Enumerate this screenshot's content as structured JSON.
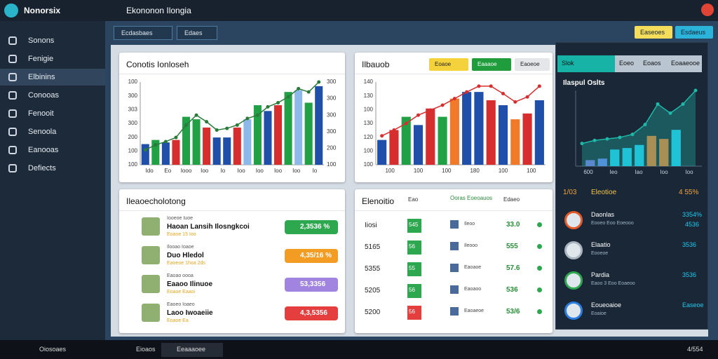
{
  "app": {
    "name": "Nonorsix",
    "tab": "Ekononon Ilongia"
  },
  "toolbar": {
    "left": [
      "Ecdasbaes",
      "Edaes"
    ],
    "right": [
      "Easeoes",
      "Esdaeus"
    ]
  },
  "sidebar": [
    "Sonons",
    "Fenigie",
    "Elbinins",
    "Conooas",
    "Fenooit",
    "Senoola",
    "Eanooas",
    "Defiects"
  ],
  "charts": [
    {
      "type": "bar",
      "title": "Conotis Ionloseh",
      "ylim": [
        0,
        100
      ],
      "y_labels": [
        "100",
        "300",
        "303",
        "300",
        "200",
        "100",
        "100"
      ],
      "y2_labels": [
        "300",
        "300",
        "300",
        "300",
        "200",
        "100"
      ],
      "x_labels": [
        "Ido",
        "Eo",
        "Iooo",
        "Ioo",
        "Io",
        "Ioo",
        "Ioo",
        "Ioo",
        "Ioo",
        "Io"
      ],
      "values": [
        25,
        30,
        27,
        30,
        58,
        55,
        45,
        33,
        33,
        45,
        55,
        72,
        65,
        72,
        88,
        90,
        75,
        95
      ],
      "colors": [
        "#1f4fa8",
        "#22a046",
        "#1f4fa8",
        "#d62e2e",
        "#22a046",
        "#22a046",
        "#d62e2e",
        "#1f4fa8",
        "#1f4fa8",
        "#d62e2e",
        "#8fb8ea",
        "#22a046",
        "#1f4fa8",
        "#d62e2e",
        "#22a046",
        "#8fb8ea",
        "#22a046",
        "#1f4fa8"
      ],
      "line_color": "#2a7a3a",
      "line_values": [
        18,
        24,
        28,
        33,
        48,
        60,
        52,
        42,
        44,
        48,
        56,
        60,
        70,
        75,
        82,
        92,
        88,
        100
      ]
    },
    {
      "type": "bar",
      "title": "Ilbauob",
      "buttons": [
        "Eoaoe",
        "Eaaaoe",
        "Eaoeoe"
      ],
      "button_colors": [
        "#f4d23c",
        "#1f9c3c",
        "#e4e6ea"
      ],
      "ylim": [
        0,
        100
      ],
      "y_labels": [
        "140",
        "130",
        "100",
        "130",
        "120",
        "100",
        "100"
      ],
      "x_labels": [
        "100",
        "100",
        "100",
        "180",
        "100",
        "100"
      ],
      "values": [
        30,
        42,
        58,
        48,
        68,
        58,
        80,
        88,
        88,
        78,
        72,
        55,
        62,
        78
      ],
      "colors": [
        "#1f4fa8",
        "#d62e2e",
        "#22a046",
        "#1f4fa8",
        "#d62e2e",
        "#22a046",
        "#f07a2a",
        "#1f4fa8",
        "#1f4fa8",
        "#d62e2e",
        "#1f4fa8",
        "#f07a2a",
        "#d62e2e",
        "#1f4fa8"
      ],
      "line_color": "#d62e2e",
      "line_values": [
        35,
        42,
        50,
        60,
        66,
        72,
        80,
        88,
        95,
        95,
        86,
        76,
        82,
        95
      ]
    },
    {
      "type": "area",
      "title": "Ilaspul Oslts",
      "ylim": [
        0,
        100
      ],
      "x_labels": [
        "600",
        "Ieo",
        "Iao",
        "Ioo",
        "Ioo"
      ],
      "values": [
        8,
        10,
        22,
        24,
        28,
        40,
        36,
        48
      ],
      "colors": [
        "#7a6fe0",
        "#6a7ff0",
        "#21c9ef",
        "#21c9ef",
        "#21c9ef",
        "#f07a2a",
        "#f07a2a",
        "#21c9ef"
      ],
      "line_color": "#1fb8a8",
      "line_values": [
        30,
        34,
        36,
        38,
        42,
        55,
        82,
        70,
        82,
        100
      ]
    }
  ],
  "list_panel": {
    "title": "Ileaoecholotong",
    "rows": [
      {
        "title": "Iooeoe Iuoe",
        "name": "Haoan Lansih Ilosngkcoi",
        "sub": "Eoaoe 15 Ioo",
        "value": "2,3536 %",
        "color": "#2ea84f"
      },
      {
        "title": "Ilooao Ioaoe",
        "name": "Duo Hledol",
        "sub": "Eaoeoe 1hoa 2ds",
        "value": "4,35/16 %",
        "color": "#f39c24"
      },
      {
        "title": "Eaoao oooa",
        "name": "Eaaoo Ilinuoe",
        "sub": "Eoaoe Eaaoi",
        "value": "53,3356",
        "color": "#a084e0"
      },
      {
        "title": "Eaoeo Ioaeo",
        "name": "Laoo Iwoaeiie",
        "sub": "Eoaoe Ea",
        "value": "4,3,5356",
        "color": "#e53e3e"
      }
    ]
  },
  "table_panel": {
    "title": "Elenoitio",
    "columns": [
      "Eao",
      "Ooras Eoeoauos",
      "Edaeo"
    ],
    "rows": [
      {
        "id": "Iiosi",
        "badge": "545",
        "badge_color": "#2ea84f",
        "label": "Ileoo",
        "value": "33.0"
      },
      {
        "id": "5165",
        "badge": "56",
        "badge_color": "#2ea84f",
        "label": "Ileooo",
        "value": "555"
      },
      {
        "id": "5355",
        "badge": "55",
        "badge_color": "#2ea84f",
        "label": "Eaoaoe",
        "value": "57.6"
      },
      {
        "id": "5205",
        "badge": "56",
        "badge_color": "#2ea84f",
        "label": "Eaoaoo",
        "value": "536"
      },
      {
        "id": "5200",
        "badge": "56",
        "badge_color": "#e53e3e",
        "label": "Eaoaeoe",
        "value": "53/6"
      }
    ]
  },
  "side_panel": {
    "tabs": [
      "Slok",
      "Eoeo",
      "Eoaos",
      "Eoaaeooe"
    ],
    "header": [
      "1/03",
      "Eleotioe",
      "4 55%"
    ],
    "rows": [
      {
        "name": "Daonlas",
        "sub": "Eooeo Eoo Eoeooo",
        "value": "3354%",
        "value2": "4536"
      },
      {
        "name": "Elaatio",
        "sub": "Eooeoe",
        "value": "3536"
      },
      {
        "name": "Pardia",
        "sub": "Eaoo 3 Eoo Eoaeoo",
        "value": "3536"
      },
      {
        "name": "Eoueoaioe",
        "sub": "Eoaioe",
        "value": "Easeoe"
      }
    ]
  },
  "taskbar": {
    "items": [
      "Oiosoaes",
      "Eioaos",
      "Eeaaaoee"
    ],
    "clock": "4/554"
  }
}
